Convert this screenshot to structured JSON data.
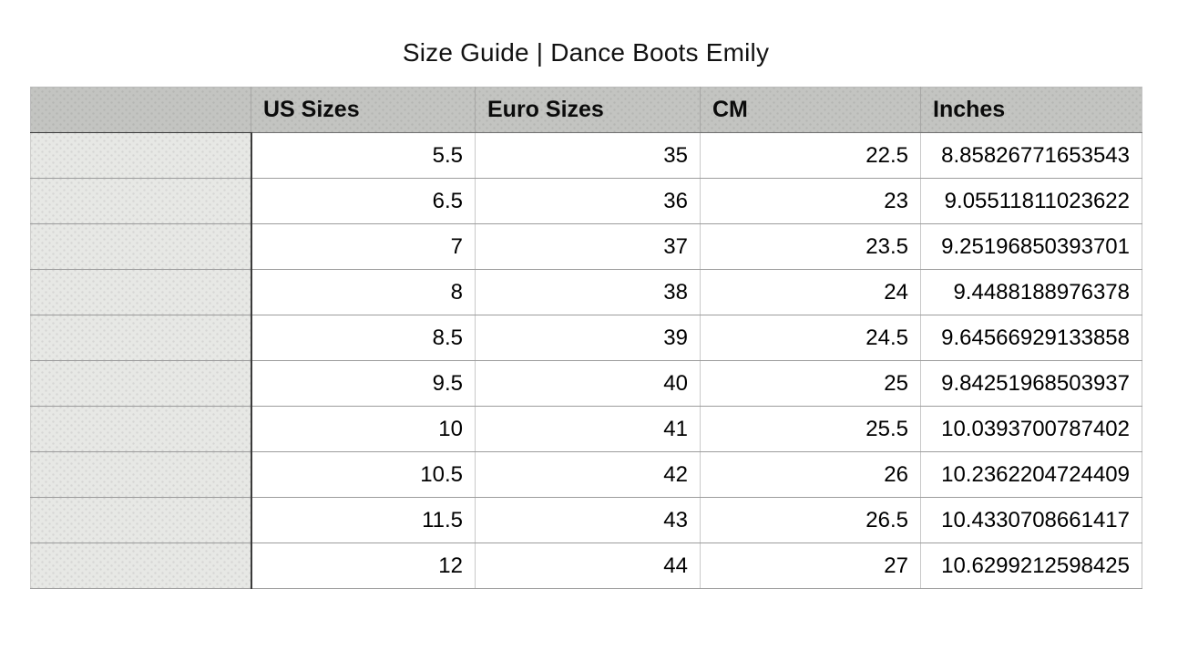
{
  "page": {
    "title": "Size Guide | Dance Boots Emily"
  },
  "table": {
    "header": {
      "row_label": "",
      "us": "US Sizes",
      "euro": "Euro Sizes",
      "cm": "CM",
      "inches": "Inches"
    },
    "rows": [
      {
        "us": "5.5",
        "euro": "35",
        "cm": "22.5",
        "inches": "8.85826771653543"
      },
      {
        "us": "6.5",
        "euro": "36",
        "cm": "23",
        "inches": "9.05511811023622"
      },
      {
        "us": "7",
        "euro": "37",
        "cm": "23.5",
        "inches": "9.25196850393701"
      },
      {
        "us": "8",
        "euro": "38",
        "cm": "24",
        "inches": "9.4488188976378"
      },
      {
        "us": "8.5",
        "euro": "39",
        "cm": "24.5",
        "inches": "9.64566929133858"
      },
      {
        "us": "9.5",
        "euro": "40",
        "cm": "25",
        "inches": "9.84251968503937"
      },
      {
        "us": "10",
        "euro": "41",
        "cm": "25.5",
        "inches": "10.0393700787402"
      },
      {
        "us": "10.5",
        "euro": "42",
        "cm": "26",
        "inches": "10.2362204724409"
      },
      {
        "us": "11.5",
        "euro": "43",
        "cm": "26.5",
        "inches": "10.4330708661417"
      },
      {
        "us": "12",
        "euro": "44",
        "cm": "27",
        "inches": "10.6299212598425"
      }
    ]
  },
  "colors": {
    "header_bg": "#c3c4c1",
    "row_header_bg": "#e7e8e5",
    "cell_bg": "#ffffff",
    "row_border": "#9d9d9d",
    "column_divider": "#c9c9c9",
    "dark_divider": "#3a3a3a",
    "text": "#000000"
  }
}
